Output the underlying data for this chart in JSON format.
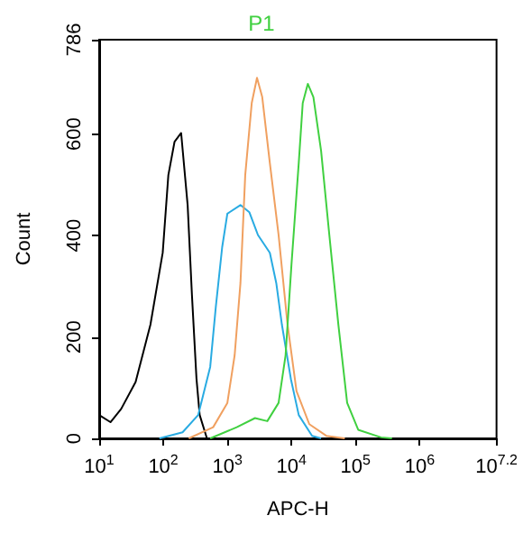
{
  "chart_data": {
    "type": "line",
    "title": "P1",
    "xlabel": "APC-H",
    "ylabel": "Count",
    "log": "x",
    "grid": false,
    "legend": false,
    "marker": "none",
    "line_style": "solid",
    "xlim": [
      10,
      15848932
    ],
    "xticks": [
      {
        "value": 10,
        "label": "10$^{1}$"
      },
      {
        "value": 100,
        "label": "10$^{2}$"
      },
      {
        "value": 1000,
        "label": "10$^{3}$"
      },
      {
        "value": 10000,
        "label": "10$^{4}$"
      },
      {
        "value": 100000,
        "label": "10$^{5}$"
      },
      {
        "value": 1000000,
        "label": "10$^{6}$"
      },
      {
        "value": 15848932,
        "label": "10$^{7.2}$"
      }
    ],
    "ylim": [
      0,
      786
    ],
    "yticks": [
      0,
      200,
      400,
      600,
      786
    ],
    "series": [
      {
        "color": "#000000",
        "x": [
          10,
          15,
          22,
          37,
          63,
          98,
          120,
          150,
          190,
          240,
          280,
          330,
          370,
          480
        ],
        "values": [
          46,
          32,
          58,
          111,
          224,
          366,
          519,
          585,
          602,
          460,
          283,
          117,
          46,
          0
        ]
      },
      {
        "color": "#29abe2",
        "x": [
          87,
          200,
          350,
          540,
          660,
          830,
          1000,
          1600,
          2200,
          3000,
          4600,
          5800,
          7100,
          9800,
          13000,
          21000,
          29000
        ],
        "values": [
          0,
          12,
          46,
          141,
          259,
          377,
          443,
          460,
          446,
          401,
          366,
          306,
          224,
          117,
          46,
          5,
          0
        ]
      },
      {
        "color": "#f0a060",
        "x": [
          250,
          600,
          1000,
          1300,
          1600,
          1900,
          2400,
          2900,
          3500,
          4600,
          6300,
          8700,
          12000,
          19000,
          35000,
          68000
        ],
        "values": [
          0,
          22,
          70,
          164,
          306,
          519,
          661,
          711,
          673,
          543,
          401,
          224,
          93,
          28,
          5,
          0
        ]
      },
      {
        "color": "#40d040",
        "x": [
          540,
          1400,
          2700,
          4200,
          6300,
          8100,
          10000,
          13000,
          15000,
          18000,
          22000,
          29000,
          39000,
          54000,
          74000,
          110000,
          250000,
          370000
        ],
        "values": [
          0,
          22,
          40,
          34,
          70,
          164,
          342,
          543,
          661,
          699,
          673,
          567,
          401,
          224,
          70,
          17,
          2,
          0
        ]
      }
    ]
  }
}
